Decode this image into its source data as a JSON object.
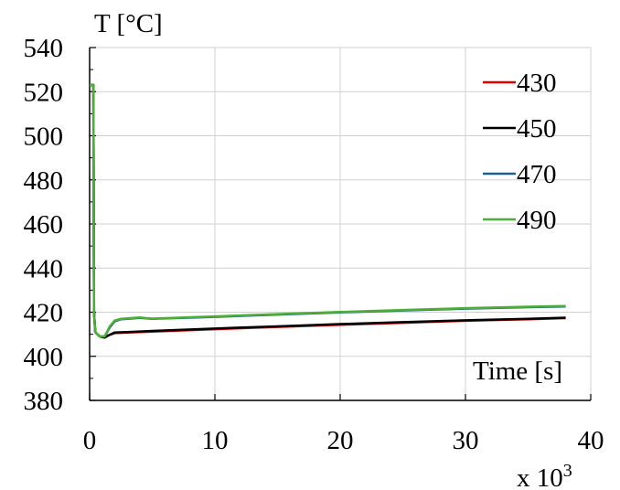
{
  "chart_data": {
    "type": "line",
    "ylabel": "T [°C]",
    "xlabel": "Time [s]",
    "x_multiplier_label": "x 10",
    "x_multiplier_exponent": "3",
    "xlim": [
      0,
      40
    ],
    "ylim": [
      380,
      540
    ],
    "xticks": [
      0,
      10,
      20,
      30,
      40
    ],
    "yticks": [
      380,
      400,
      420,
      440,
      460,
      480,
      500,
      520,
      540
    ],
    "grid": true,
    "legend_position": "top-right",
    "series": [
      {
        "name": "430",
        "color": "#e00000",
        "points": [
          [
            0,
            523
          ],
          [
            0.1,
            523
          ],
          [
            0.3,
            523
          ],
          [
            0.35,
            420
          ],
          [
            0.45,
            411
          ],
          [
            0.8,
            409
          ],
          [
            1.2,
            408.5
          ],
          [
            1.5,
            409.5
          ],
          [
            2,
            410.5
          ],
          [
            3,
            410.8
          ],
          [
            5,
            411.2
          ],
          [
            10,
            412.3
          ],
          [
            15,
            413.3
          ],
          [
            20,
            414.3
          ],
          [
            25,
            415.2
          ],
          [
            30,
            416.1
          ],
          [
            35,
            416.8
          ],
          [
            38,
            417.3
          ]
        ]
      },
      {
        "name": "450",
        "color": "#000000",
        "points": [
          [
            0,
            523
          ],
          [
            0.1,
            523
          ],
          [
            0.3,
            523
          ],
          [
            0.35,
            420
          ],
          [
            0.45,
            411
          ],
          [
            0.8,
            409
          ],
          [
            1.2,
            408.5
          ],
          [
            1.5,
            409.5
          ],
          [
            2,
            410.8
          ],
          [
            3,
            411
          ],
          [
            5,
            411.5
          ],
          [
            10,
            412.6
          ],
          [
            15,
            413.6
          ],
          [
            20,
            414.6
          ],
          [
            25,
            415.5
          ],
          [
            30,
            416.3
          ],
          [
            35,
            417
          ],
          [
            38,
            417.5
          ]
        ]
      },
      {
        "name": "470",
        "color": "#1f5f8b",
        "points": [
          [
            0,
            523
          ],
          [
            0.1,
            523
          ],
          [
            0.3,
            523
          ],
          [
            0.35,
            420
          ],
          [
            0.45,
            411
          ],
          [
            0.8,
            409
          ],
          [
            1.2,
            409
          ],
          [
            1.6,
            413
          ],
          [
            2,
            415.8
          ],
          [
            2.5,
            416.8
          ],
          [
            3.5,
            417.2
          ],
          [
            4,
            417.4
          ],
          [
            4.5,
            417.2
          ],
          [
            5,
            417
          ],
          [
            10,
            417.9
          ],
          [
            15,
            418.9
          ],
          [
            20,
            419.9
          ],
          [
            25,
            420.8
          ],
          [
            30,
            421.6
          ],
          [
            35,
            422.3
          ],
          [
            38,
            422.6
          ]
        ]
      },
      {
        "name": "490",
        "color": "#4caf35",
        "points": [
          [
            0,
            523
          ],
          [
            0.1,
            523
          ],
          [
            0.3,
            523
          ],
          [
            0.35,
            420
          ],
          [
            0.45,
            411
          ],
          [
            0.8,
            409
          ],
          [
            1.2,
            409
          ],
          [
            1.6,
            413.5
          ],
          [
            2,
            416.2
          ],
          [
            2.5,
            417
          ],
          [
            3.5,
            417.4
          ],
          [
            4,
            417.6
          ],
          [
            4.5,
            417.3
          ],
          [
            5,
            417.1
          ],
          [
            10,
            418.1
          ],
          [
            15,
            419.1
          ],
          [
            20,
            420.1
          ],
          [
            25,
            421
          ],
          [
            30,
            421.8
          ],
          [
            35,
            422.5
          ],
          [
            38,
            422.8
          ]
        ]
      }
    ]
  }
}
